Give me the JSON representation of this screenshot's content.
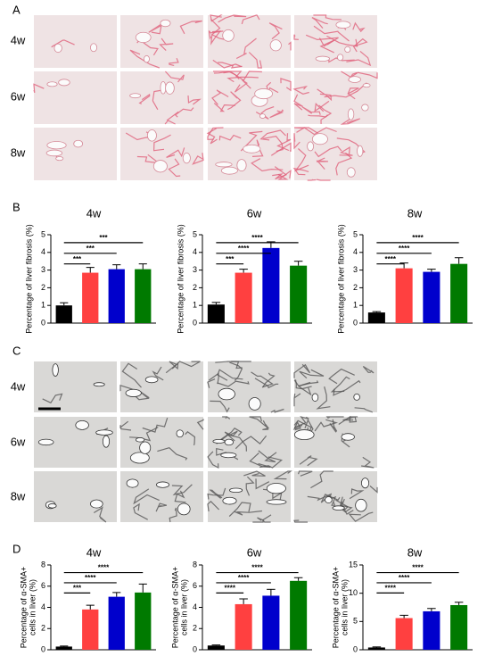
{
  "panel_labels": [
    "A",
    "B",
    "C",
    "D"
  ],
  "panel_a_rows": [
    "4w",
    "6w",
    "8w"
  ],
  "panel_c_rows": [
    "4w",
    "6w",
    "8w"
  ],
  "chart_data": [
    {
      "type": "bar",
      "title": "4w",
      "y_label": "Percentage of liver fibrosis (%)",
      "categories": [
        null,
        null,
        null,
        null
      ],
      "values": [
        1.0,
        2.85,
        3.05,
        3.05
      ],
      "errors": [
        0.15,
        0.3,
        0.25,
        0.3
      ],
      "colors": [
        "#000000",
        "#ff4040",
        "#0000cc",
        "#007a00"
      ],
      "significance": [
        "***",
        "***",
        "***"
      ],
      "ylim": [
        0,
        5
      ],
      "yticks": [
        0,
        1,
        2,
        3,
        4,
        5
      ]
    },
    {
      "type": "bar",
      "title": "6w",
      "y_label": "Percentage of liver fibrosis (%)",
      "categories": [
        null,
        null,
        null,
        null
      ],
      "values": [
        1.05,
        2.85,
        4.25,
        3.25
      ],
      "errors": [
        0.12,
        0.2,
        0.35,
        0.25
      ],
      "colors": [
        "#000000",
        "#ff4040",
        "#0000cc",
        "#007a00"
      ],
      "significance": [
        "***",
        "****",
        "****"
      ],
      "ylim": [
        0,
        5
      ],
      "yticks": [
        0,
        1,
        2,
        3,
        4,
        5
      ]
    },
    {
      "type": "bar",
      "title": "8w",
      "y_label": "Percentage of liver fibrosis (%)",
      "categories": [
        null,
        null,
        null,
        null
      ],
      "values": [
        0.6,
        3.1,
        2.9,
        3.35
      ],
      "errors": [
        0.05,
        0.3,
        0.15,
        0.35
      ],
      "colors": [
        "#000000",
        "#ff4040",
        "#0000cc",
        "#007a00"
      ],
      "significance": [
        "****",
        "****",
        "****"
      ],
      "ylim": [
        0,
        5
      ],
      "yticks": [
        0,
        1,
        2,
        3,
        4,
        5
      ]
    },
    {
      "type": "bar",
      "title": "4w",
      "y_label": [
        "Percentage of α-SMA+",
        "cells in liver (%)"
      ],
      "categories": [
        null,
        null,
        null,
        null
      ],
      "values": [
        0.3,
        3.8,
        5.0,
        5.4
      ],
      "errors": [
        0.05,
        0.4,
        0.4,
        0.8
      ],
      "colors": [
        "#000000",
        "#ff4040",
        "#0000cc",
        "#007a00"
      ],
      "significance": [
        "***",
        "****",
        "****"
      ],
      "ylim": [
        0,
        8
      ],
      "yticks": [
        0,
        2,
        4,
        6,
        8
      ]
    },
    {
      "type": "bar",
      "title": "6w",
      "y_label": [
        "Percentage of α-SMA+",
        "cells in liver (%)"
      ],
      "categories": [
        null,
        null,
        null,
        null
      ],
      "values": [
        0.4,
        4.3,
        5.1,
        6.5
      ],
      "errors": [
        0.05,
        0.5,
        0.6,
        0.3
      ],
      "colors": [
        "#000000",
        "#ff4040",
        "#0000cc",
        "#007a00"
      ],
      "significance": [
        "****",
        "****",
        "****"
      ],
      "ylim": [
        0,
        8
      ],
      "yticks": [
        0,
        2,
        4,
        6,
        8
      ]
    },
    {
      "type": "bar",
      "title": "8w",
      "y_label": [
        "Percentage of α-SMA+",
        "cells in liver (%)"
      ],
      "categories": [
        null,
        null,
        null,
        null
      ],
      "values": [
        0.4,
        5.6,
        6.8,
        7.9
      ],
      "errors": [
        0.1,
        0.5,
        0.5,
        0.5
      ],
      "colors": [
        "#000000",
        "#ff4040",
        "#0000cc",
        "#007a00"
      ],
      "significance": [
        "****",
        "****",
        "****"
      ],
      "ylim": [
        0,
        15
      ],
      "yticks": [
        0,
        5,
        10,
        15
      ]
    }
  ]
}
